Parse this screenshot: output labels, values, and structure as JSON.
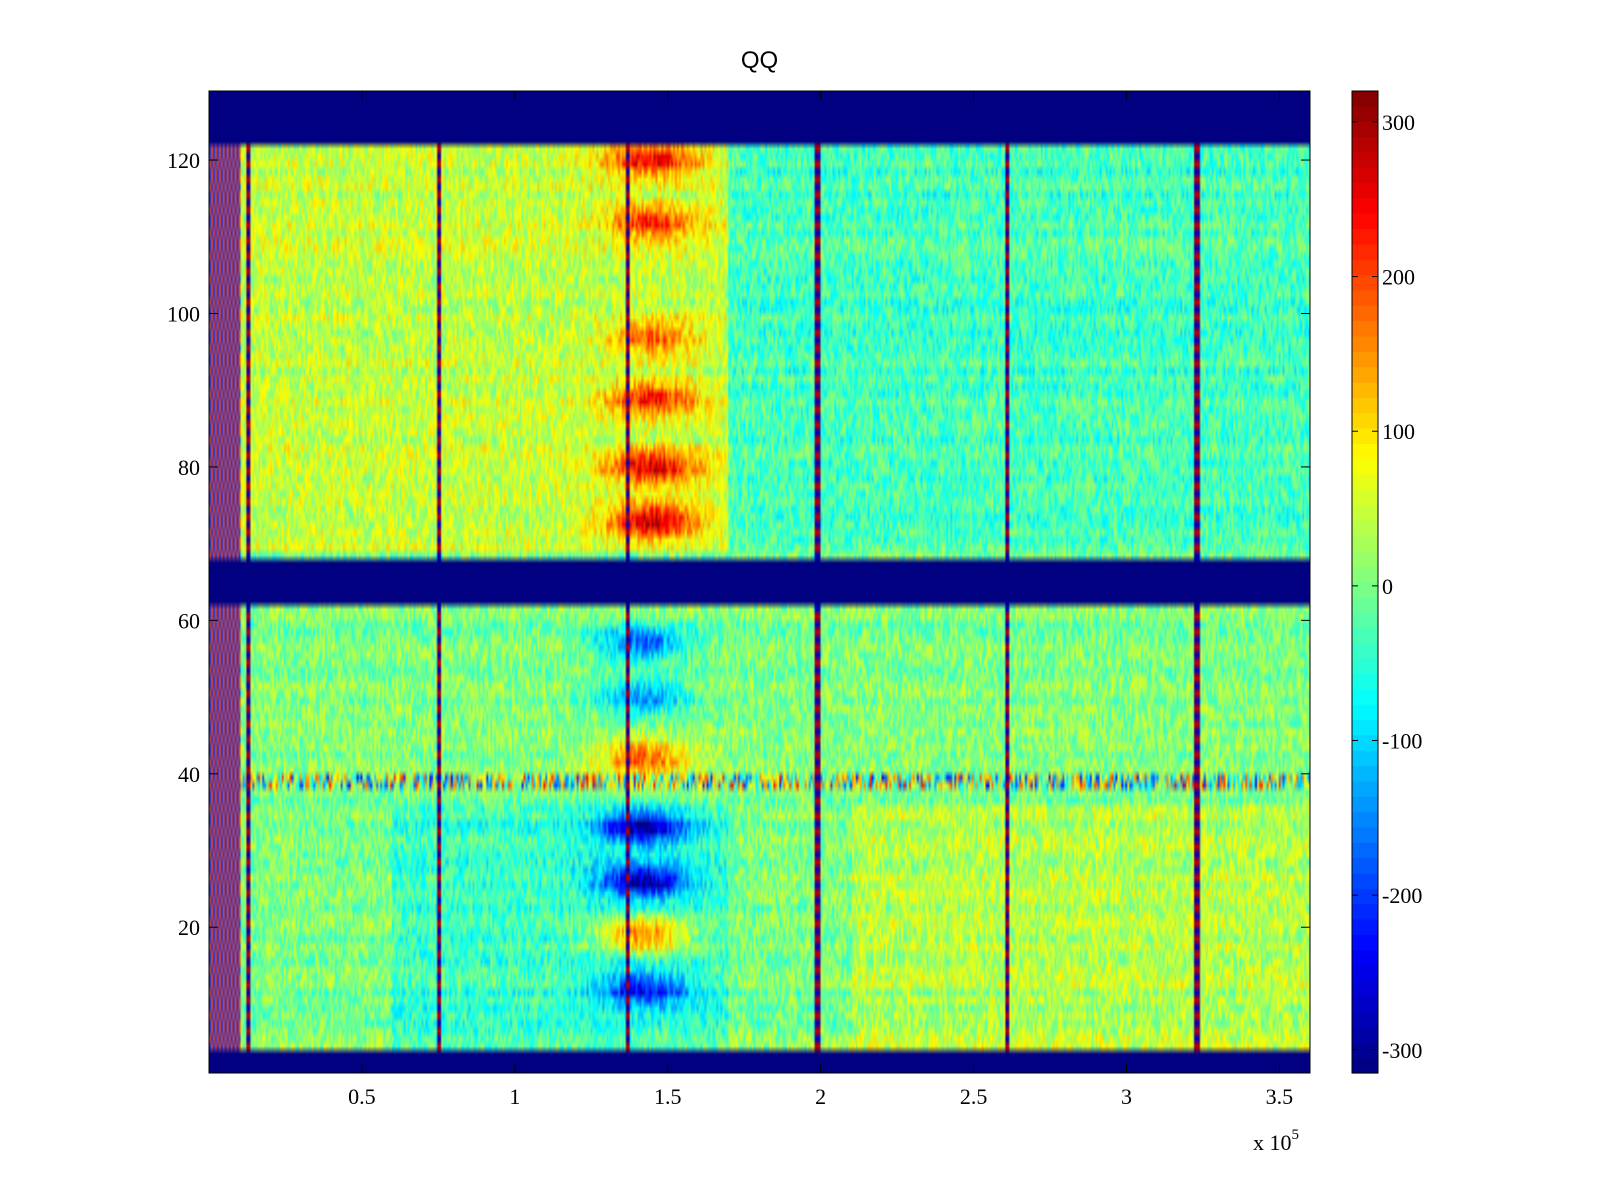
{
  "chart_data": {
    "type": "heatmap",
    "title": "QQ",
    "xlabel": "",
    "ylabel": "",
    "x_multiplier_label": "x 10",
    "x_multiplier_exponent": "5",
    "xlim": [
      0,
      360000
    ],
    "ylim": [
      1,
      129
    ],
    "x_ticks": [
      {
        "value": 50000,
        "label": "0.5"
      },
      {
        "value": 100000,
        "label": "1"
      },
      {
        "value": 150000,
        "label": "1.5"
      },
      {
        "value": 200000,
        "label": "2"
      },
      {
        "value": 250000,
        "label": "2.5"
      },
      {
        "value": 300000,
        "label": "3"
      },
      {
        "value": 350000,
        "label": "3.5"
      }
    ],
    "y_ticks": [
      {
        "value": 20,
        "label": "20"
      },
      {
        "value": 40,
        "label": "40"
      },
      {
        "value": 60,
        "label": "60"
      },
      {
        "value": 80,
        "label": "80"
      },
      {
        "value": 100,
        "label": "100"
      },
      {
        "value": 120,
        "label": "120"
      }
    ],
    "colorbar": {
      "range": [
        -315,
        320
      ],
      "colormap": "jet",
      "ticks": [
        {
          "value": 300,
          "label": "300"
        },
        {
          "value": 200,
          "label": "200"
        },
        {
          "value": 100,
          "label": "100"
        },
        {
          "value": 0,
          "label": "0"
        },
        {
          "value": -100,
          "label": "-100"
        },
        {
          "value": -200,
          "label": "-200"
        },
        {
          "value": -300,
          "label": "-300"
        }
      ]
    },
    "masked_rows": [
      [
        1,
        4
      ],
      [
        62,
        68
      ],
      [
        122,
        129
      ]
    ],
    "vertical_lines_x": [
      4000,
      13000,
      75000,
      137000,
      199000,
      261000,
      323000
    ],
    "horizontal_line_y": 39,
    "hotspots": [
      {
        "x": 145000,
        "y": 80,
        "value": 220
      },
      {
        "x": 145000,
        "y": 73,
        "value": 240
      },
      {
        "x": 145000,
        "y": 89,
        "value": 180
      },
      {
        "x": 145000,
        "y": 97,
        "value": 150
      },
      {
        "x": 145000,
        "y": 112,
        "value": 170
      },
      {
        "x": 145000,
        "y": 120,
        "value": 200
      },
      {
        "x": 142000,
        "y": 42,
        "value": 180
      },
      {
        "x": 142000,
        "y": 19,
        "value": 200
      },
      {
        "x": 142000,
        "y": 33,
        "value": -250
      },
      {
        "x": 142000,
        "y": 26,
        "value": -260
      },
      {
        "x": 142000,
        "y": 12,
        "value": -200
      },
      {
        "x": 142000,
        "y": 57,
        "value": -180
      },
      {
        "x": 142000,
        "y": 50,
        "value": -150
      }
    ],
    "regional_bias": [
      {
        "x_range": [
          0,
          170000
        ],
        "y_range": [
          69,
          122
        ],
        "value": 45
      },
      {
        "x_range": [
          170000,
          360000
        ],
        "y_range": [
          69,
          122
        ],
        "value": -35
      },
      {
        "x_range": [
          60000,
          170000
        ],
        "y_range": [
          4,
          36
        ],
        "value": -40
      },
      {
        "x_range": [
          210000,
          360000
        ],
        "y_range": [
          4,
          36
        ],
        "value": 35
      }
    ]
  }
}
